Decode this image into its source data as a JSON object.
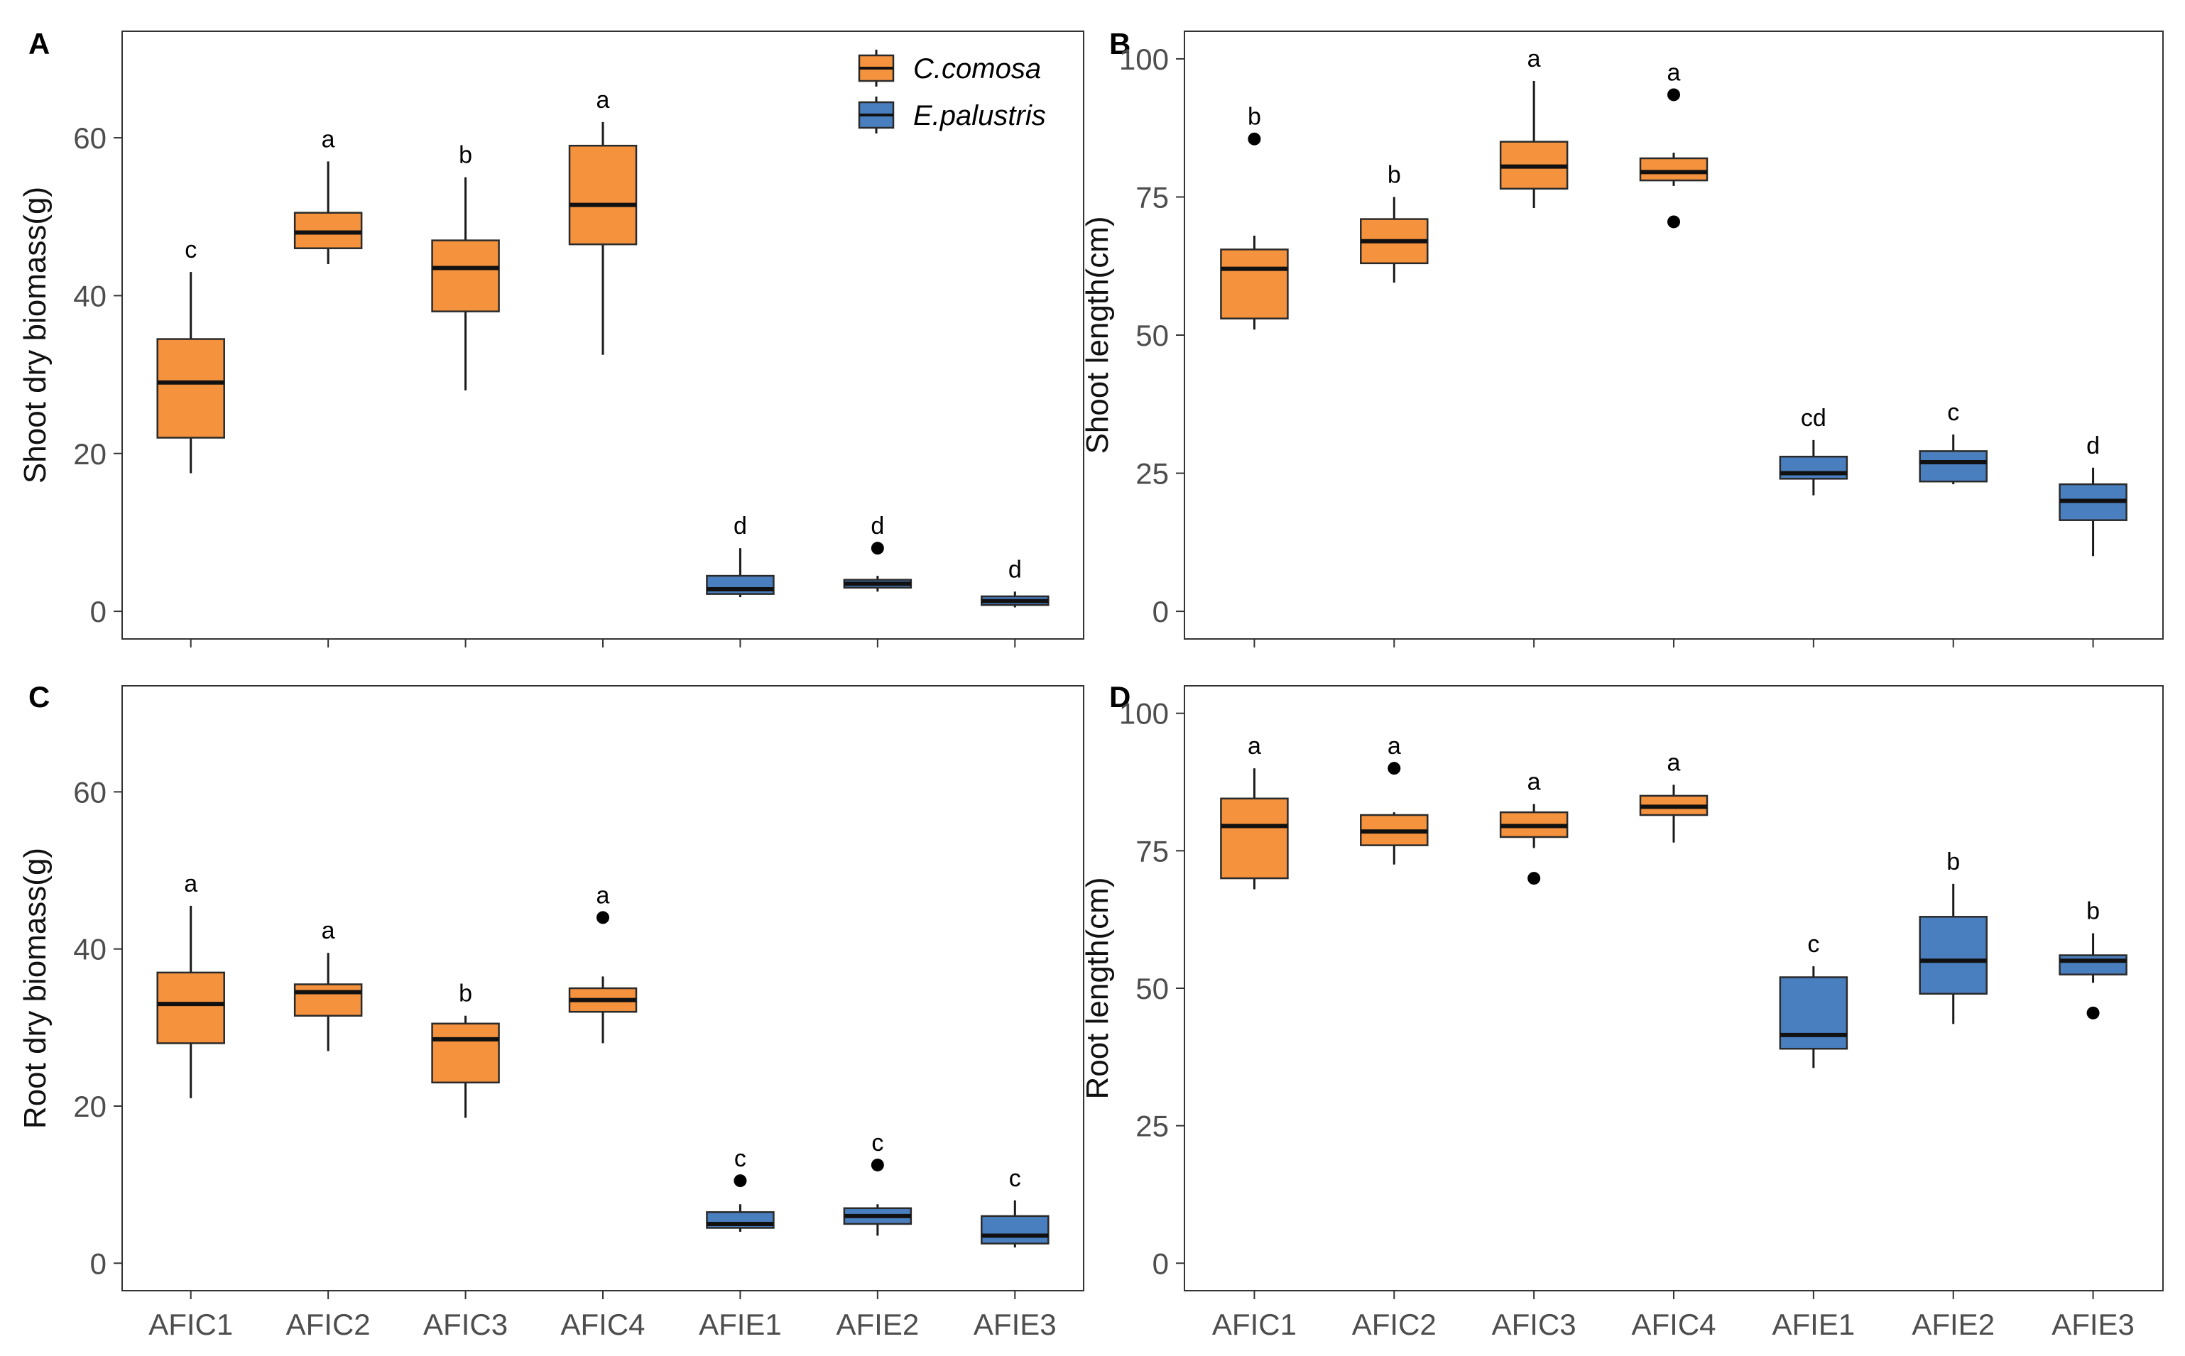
{
  "chart_data": [
    {
      "type": "box",
      "panel": "A",
      "ylabel": "Shoot dry biomass(g)",
      "xlabel": "",
      "ylim": [
        -3.5,
        73.5
      ],
      "yticks": [
        0,
        20,
        40,
        60
      ],
      "show_x_labels": false,
      "categories": [
        "AFIC1",
        "AFIC2",
        "AFIC3",
        "AFIC4",
        "AFIE1",
        "AFIE2",
        "AFIE3"
      ],
      "groups": [
        "C.comosa",
        "C.comosa",
        "C.comosa",
        "C.comosa",
        "E.palustris",
        "E.palustris",
        "E.palustris"
      ],
      "boxes": [
        {
          "min": 17.5,
          "q1": 22,
          "median": 29,
          "q3": 34.5,
          "max": 43,
          "outliers": [],
          "sig": "c"
        },
        {
          "min": 44,
          "q1": 46,
          "median": 48,
          "q3": 50.5,
          "max": 57,
          "outliers": [],
          "sig": "a"
        },
        {
          "min": 28,
          "q1": 38,
          "median": 43.5,
          "q3": 47,
          "max": 55,
          "outliers": [],
          "sig": "b"
        },
        {
          "min": 32.5,
          "q1": 46.5,
          "median": 51.5,
          "q3": 59,
          "max": 62,
          "outliers": [],
          "sig": "a"
        },
        {
          "min": 1.8,
          "q1": 2.2,
          "median": 2.8,
          "q3": 4.5,
          "max": 8,
          "outliers": [],
          "sig": "d"
        },
        {
          "min": 2.5,
          "q1": 3,
          "median": 3.5,
          "q3": 4,
          "max": 4.5,
          "outliers": [
            8
          ],
          "sig": "d"
        },
        {
          "min": 0.5,
          "q1": 0.8,
          "median": 1.3,
          "q3": 1.9,
          "max": 2.5,
          "outliers": [],
          "sig": "d"
        }
      ]
    },
    {
      "type": "box",
      "panel": "B",
      "ylabel": "Shoot length(cm)",
      "xlabel": "",
      "ylim": [
        -5,
        105
      ],
      "yticks": [
        0,
        25,
        50,
        75,
        100
      ],
      "show_x_labels": false,
      "categories": [
        "AFIC1",
        "AFIC2",
        "AFIC3",
        "AFIC4",
        "AFIE1",
        "AFIE2",
        "AFIE3"
      ],
      "groups": [
        "C.comosa",
        "C.comosa",
        "C.comosa",
        "C.comosa",
        "E.palustris",
        "E.palustris",
        "E.palustris"
      ],
      "boxes": [
        {
          "min": 51,
          "q1": 53,
          "median": 62,
          "q3": 65.5,
          "max": 68,
          "outliers": [
            85.5
          ],
          "sig": "b"
        },
        {
          "min": 59.5,
          "q1": 63,
          "median": 67,
          "q3": 71,
          "max": 75,
          "outliers": [],
          "sig": "b"
        },
        {
          "min": 73,
          "q1": 76.5,
          "median": 80.5,
          "q3": 85,
          "max": 96,
          "outliers": [],
          "sig": "a"
        },
        {
          "min": 77,
          "q1": 78,
          "median": 79.5,
          "q3": 82,
          "max": 83,
          "outliers": [
            93.5,
            70.5
          ],
          "sig": "a"
        },
        {
          "min": 21,
          "q1": 24,
          "median": 25,
          "q3": 28,
          "max": 31,
          "outliers": [],
          "sig": "cd"
        },
        {
          "min": 23,
          "q1": 23.5,
          "median": 27,
          "q3": 29,
          "max": 32,
          "outliers": [],
          "sig": "c"
        },
        {
          "min": 10,
          "q1": 16.5,
          "median": 20,
          "q3": 23,
          "max": 26,
          "outliers": [],
          "sig": "d"
        }
      ]
    },
    {
      "type": "box",
      "panel": "C",
      "ylabel": "Root dry biomass(g)",
      "xlabel": "",
      "ylim": [
        -3.5,
        73.5
      ],
      "yticks": [
        0,
        20,
        40,
        60
      ],
      "show_x_labels": true,
      "categories": [
        "AFIC1",
        "AFIC2",
        "AFIC3",
        "AFIC4",
        "AFIE1",
        "AFIE2",
        "AFIE3"
      ],
      "groups": [
        "C.comosa",
        "C.comosa",
        "C.comosa",
        "C.comosa",
        "E.palustris",
        "E.palustris",
        "E.palustris"
      ],
      "boxes": [
        {
          "min": 21,
          "q1": 28,
          "median": 33,
          "q3": 37,
          "max": 45.5,
          "outliers": [],
          "sig": "a"
        },
        {
          "min": 27,
          "q1": 31.5,
          "median": 34.5,
          "q3": 35.5,
          "max": 39.5,
          "outliers": [],
          "sig": "a"
        },
        {
          "min": 18.5,
          "q1": 23,
          "median": 28.5,
          "q3": 30.5,
          "max": 31.5,
          "outliers": [],
          "sig": "b"
        },
        {
          "min": 28,
          "q1": 32,
          "median": 33.5,
          "q3": 35,
          "max": 36.5,
          "outliers": [
            44
          ],
          "sig": "a"
        },
        {
          "min": 4,
          "q1": 4.5,
          "median": 5,
          "q3": 6.5,
          "max": 7.5,
          "outliers": [
            10.5
          ],
          "sig": "c"
        },
        {
          "min": 3.5,
          "q1": 5,
          "median": 6,
          "q3": 7,
          "max": 7.5,
          "outliers": [
            12.5
          ],
          "sig": "c"
        },
        {
          "min": 2,
          "q1": 2.5,
          "median": 3.5,
          "q3": 6,
          "max": 8,
          "outliers": [],
          "sig": "c"
        }
      ]
    },
    {
      "type": "box",
      "panel": "D",
      "ylabel": "Root length(cm)",
      "xlabel": "",
      "ylim": [
        -5,
        105
      ],
      "yticks": [
        0,
        25,
        50,
        75,
        100
      ],
      "show_x_labels": true,
      "categories": [
        "AFIC1",
        "AFIC2",
        "AFIC3",
        "AFIC4",
        "AFIE1",
        "AFIE2",
        "AFIE3"
      ],
      "groups": [
        "C.comosa",
        "C.comosa",
        "C.comosa",
        "C.comosa",
        "E.palustris",
        "E.palustris",
        "E.palustris"
      ],
      "boxes": [
        {
          "min": 68,
          "q1": 70,
          "median": 79.5,
          "q3": 84.5,
          "max": 90,
          "outliers": [],
          "sig": "a"
        },
        {
          "min": 72.5,
          "q1": 76,
          "median": 78.5,
          "q3": 81.5,
          "max": 82,
          "outliers": [
            90
          ],
          "sig": "a"
        },
        {
          "min": 75.5,
          "q1": 77.5,
          "median": 79.5,
          "q3": 82,
          "max": 83.5,
          "outliers": [
            70
          ],
          "sig": "a"
        },
        {
          "min": 76.5,
          "q1": 81.5,
          "median": 83,
          "q3": 85,
          "max": 87,
          "outliers": [],
          "sig": "a"
        },
        {
          "min": 35.5,
          "q1": 39,
          "median": 41.5,
          "q3": 52,
          "max": 54,
          "outliers": [],
          "sig": "c"
        },
        {
          "min": 43.5,
          "q1": 49,
          "median": 55,
          "q3": 63,
          "max": 69,
          "outliers": [],
          "sig": "b"
        },
        {
          "min": 51,
          "q1": 52.5,
          "median": 55,
          "q3": 56,
          "max": 60,
          "outliers": [
            45.5
          ],
          "sig": "b"
        }
      ]
    }
  ],
  "legend": {
    "position": "top-right",
    "entries": [
      {
        "label": "C.comosa",
        "color": "#f5923e"
      },
      {
        "label": "E.palustris",
        "color": "#4a7fbf"
      }
    ]
  },
  "colors": {
    "C.comosa": "#f5923e",
    "E.palustris": "#4a7fbf"
  }
}
